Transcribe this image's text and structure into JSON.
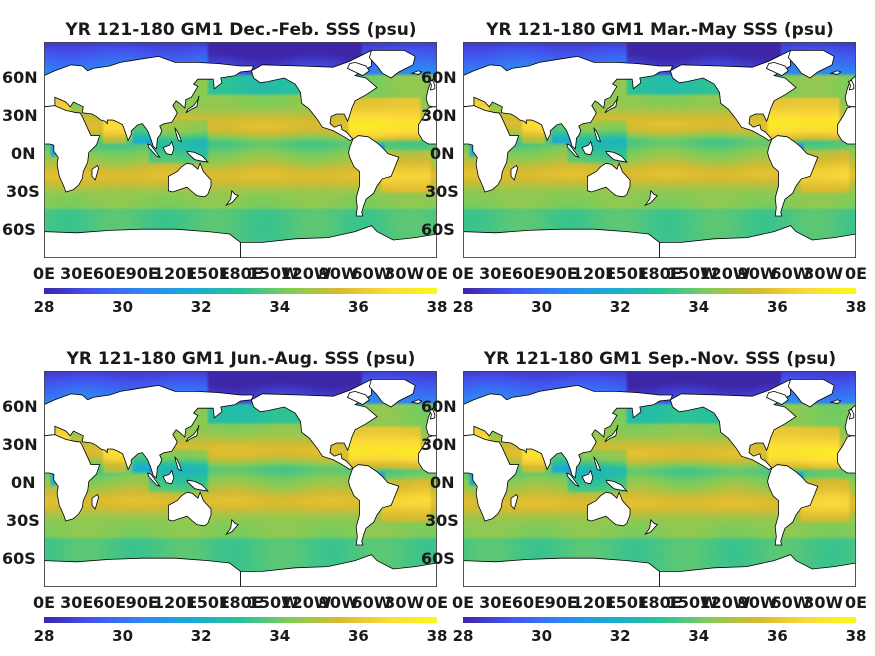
{
  "panels": [
    {
      "title": "YR 121-180 GM1 Dec.-Feb. SSS (psu)"
    },
    {
      "title": "YR 121-180 GM1 Mar.-May SSS (psu)"
    },
    {
      "title": "YR 121-180 GM1 Jun.-Aug. SSS (psu)"
    },
    {
      "title": "YR 121-180 GM1 Sep.-Nov. SSS (psu)"
    }
  ],
  "lat_labels": [
    "60N",
    "30N",
    "0N",
    "30S",
    "60S"
  ],
  "lon_labels": [
    "0E",
    "30E",
    "60E",
    "90E",
    "120E",
    "150E",
    "180E",
    "150W",
    "120W",
    "90W",
    "60W",
    "30W",
    "0E"
  ],
  "colorbar": {
    "ticks": [
      "28",
      "30",
      "32",
      "34",
      "36",
      "38"
    ],
    "range": [
      28,
      38
    ],
    "colormap": "parula",
    "colors": [
      "#3e26a8",
      "#4355f0",
      "#2f86f3",
      "#1aabd5",
      "#29c19b",
      "#81cc59",
      "#d8ba30",
      "#fdd93a",
      "#f9fb15"
    ]
  },
  "colors": {
    "land": "#ffffff",
    "coast": "#000000",
    "ocean_typical": "#2fbf9a",
    "subtropical_high": "#e4be3a",
    "polar_fresh": "#4355f0"
  }
}
